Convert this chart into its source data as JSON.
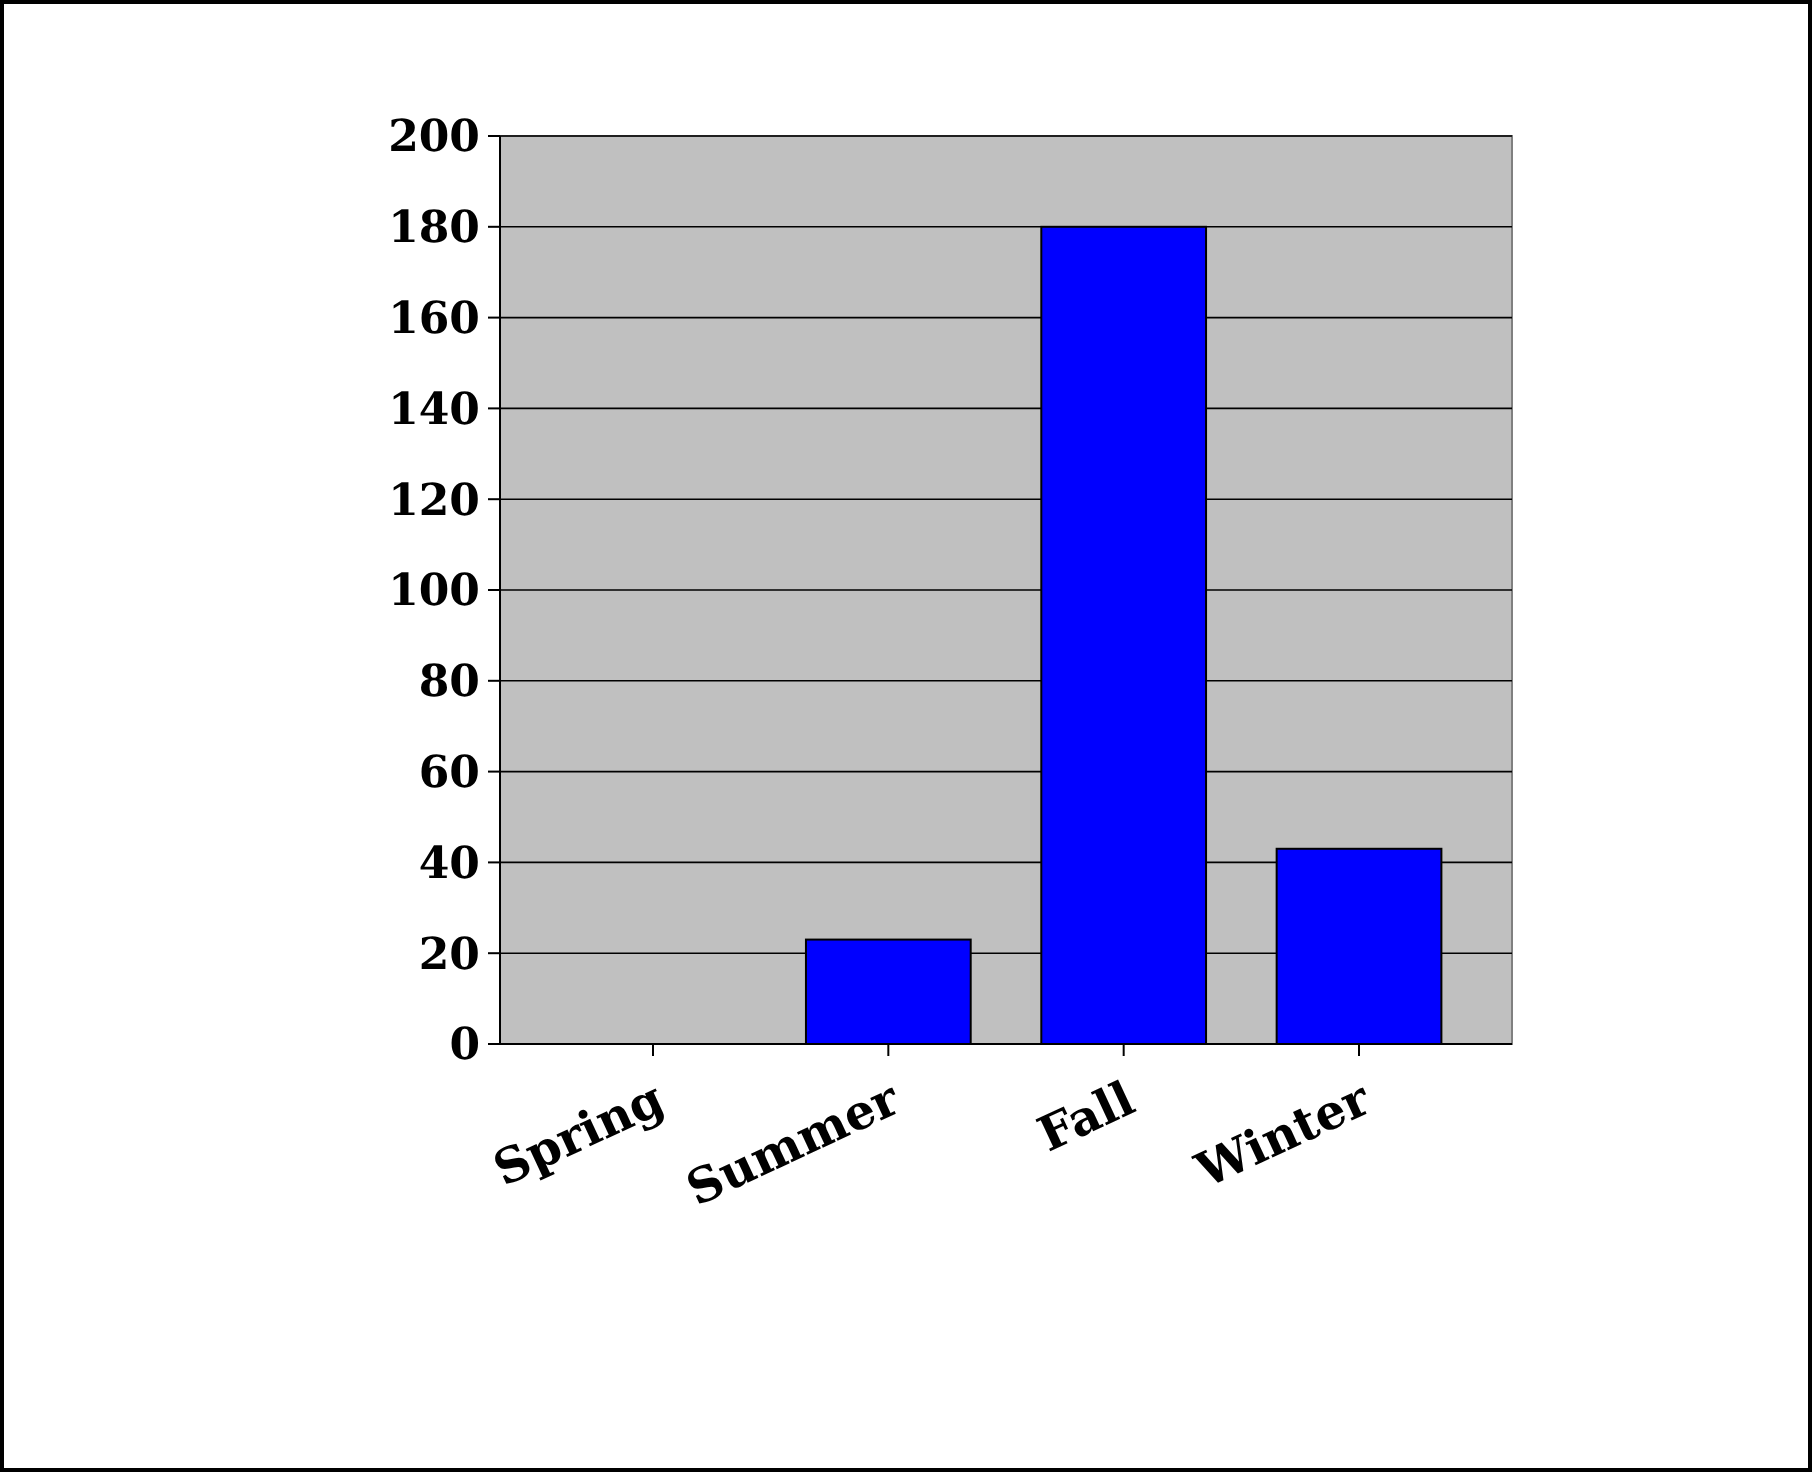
{
  "chart_data": {
    "type": "bar",
    "categories": [
      "Spring",
      "Summer",
      "Fall",
      "Winter"
    ],
    "values": [
      0,
      23,
      180,
      43
    ],
    "color": "#0000ff",
    "ylim": [
      0,
      200
    ],
    "yticks": [
      0,
      20,
      40,
      60,
      80,
      100,
      120,
      140,
      160,
      180,
      200
    ],
    "grid": "y"
  }
}
